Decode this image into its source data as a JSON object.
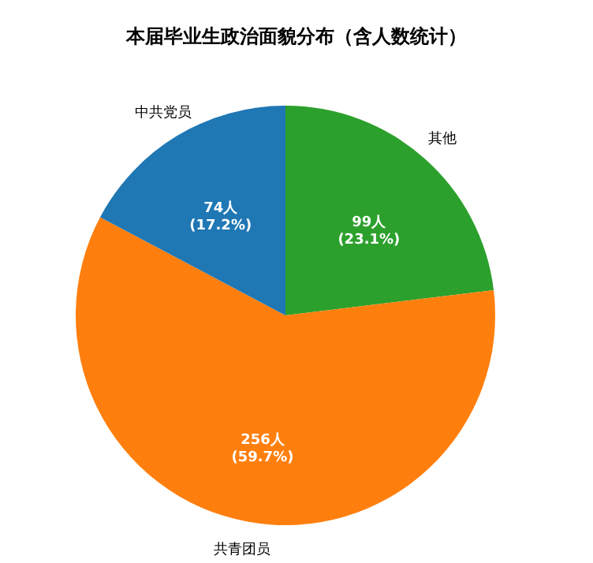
{
  "chart_data": {
    "type": "pie",
    "title": "本届毕业生政治面貌分布（含人数统计）",
    "categories": [
      "其他",
      "共青团员",
      "中共党员"
    ],
    "values": [
      99,
      256,
      74
    ],
    "colors": [
      "#2ca02c",
      "#ff7f0e",
      "#1f77b4"
    ],
    "value_labels": [
      "99人\n(23.1%)",
      "256人\n(59.7%)",
      "74人\n(17.2%)"
    ]
  }
}
